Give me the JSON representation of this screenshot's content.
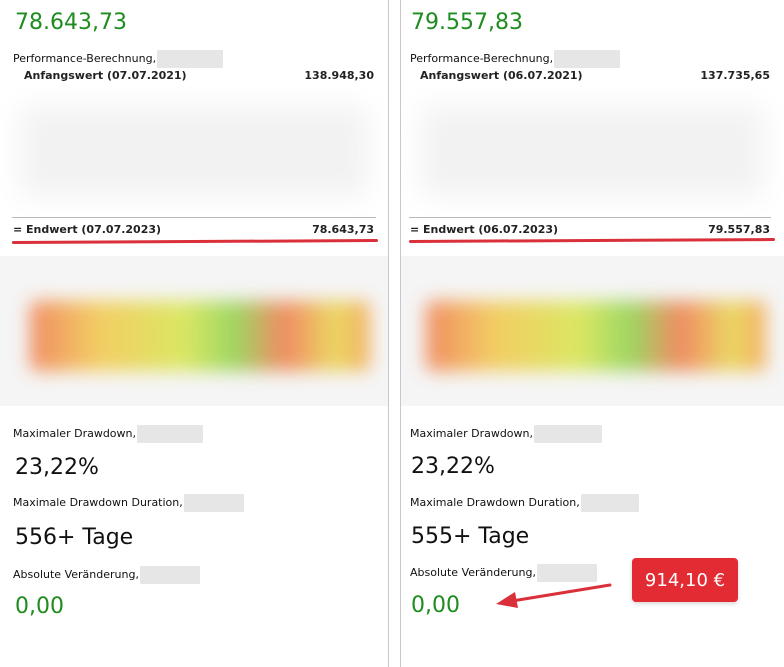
{
  "left": {
    "top_value": "78.643,73",
    "performance_label": "Performance-Berechnung,",
    "start_label": "Anfangswert (07.07.2021)",
    "start_value": "138.948,30",
    "end_label": "= Endwert (07.07.2023)",
    "end_value": "78.643,73",
    "max_drawdown_label": "Maximaler Drawdown,",
    "max_drawdown_value": "23,22%",
    "max_drawdown_duration_label": "Maximale Drawdown Duration,",
    "max_drawdown_duration_value": "556+ Tage",
    "absolute_change_label": "Absolute Veränderung,",
    "absolute_change_value": "0,00"
  },
  "right": {
    "top_value": "79.557,83",
    "performance_label": "Performance-Berechnung,",
    "start_label": "Anfangswert (06.07.2021)",
    "start_value": "137.735,65",
    "end_label": "= Endwert (06.07.2023)",
    "end_value": "79.557,83",
    "max_drawdown_label": "Maximaler Drawdown,",
    "max_drawdown_value": "23,22%",
    "max_drawdown_duration_label": "Maximale Drawdown Duration,",
    "max_drawdown_duration_value": "555+ Tage",
    "absolute_change_label": "Absolute Veränderung,",
    "absolute_change_value": "0,00"
  },
  "annotation": {
    "badge_text": "914,10 €",
    "badge_color": "#e32b33",
    "underline_color": "#d9303a"
  },
  "colors": {
    "value_green": "#1e8c1e"
  }
}
